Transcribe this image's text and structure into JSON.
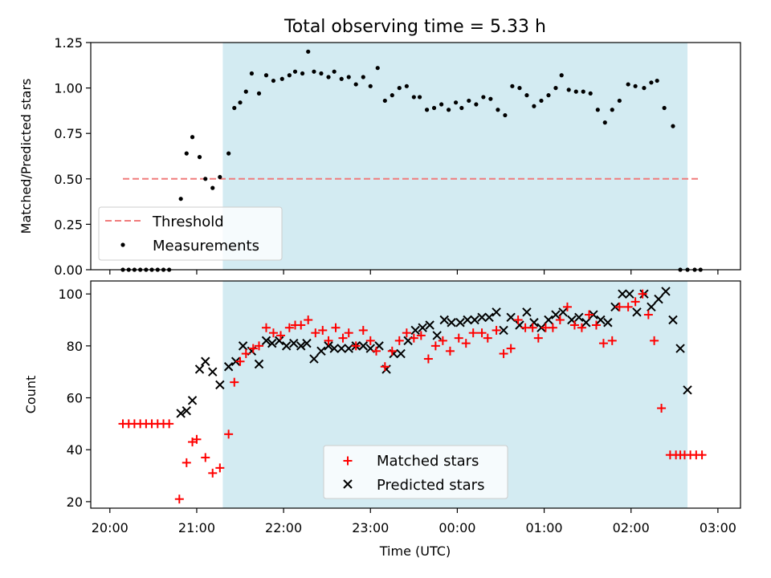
{
  "title": "Total observing time = 5.33 h",
  "xlabel": "Time (UTC)",
  "colors": {
    "shade": "#d3ebf2",
    "threshold": "#f07c7c",
    "matched": "#ff0000",
    "predicted": "#000000"
  },
  "chart_data": [
    {
      "type": "scatter",
      "panel": "top",
      "ylabel": "Matched/Predicted stars",
      "ylim": [
        0,
        1.25
      ],
      "yticks": [
        0.0,
        0.25,
        0.5,
        0.75,
        1.0,
        1.25
      ],
      "ytick_labels": [
        "0.00",
        "0.25",
        "0.50",
        "0.75",
        "1.00",
        "1.25"
      ],
      "x_range_hours": [
        19.78,
        27.26
      ],
      "xticks_hours": [
        20,
        21,
        22,
        23,
        24,
        25,
        26,
        27
      ],
      "shaded_interval_hours": [
        21.3,
        26.65
      ],
      "threshold": {
        "name": "Threshold",
        "value": 0.5,
        "x_start_hours": 20.15,
        "x_end_hours": 26.8
      },
      "legend_position": "lower-left",
      "series": [
        {
          "name": "Measurements",
          "x_hours": [
            20.15,
            20.217,
            20.283,
            20.35,
            20.417,
            20.483,
            20.55,
            20.617,
            20.683,
            20.817,
            20.883,
            20.95,
            21.033,
            21.1,
            21.183,
            21.267,
            21.367,
            21.433,
            21.5,
            21.567,
            21.633,
            21.717,
            21.8,
            21.883,
            21.983,
            22.067,
            22.133,
            22.217,
            22.283,
            22.35,
            22.433,
            22.517,
            22.583,
            22.667,
            22.75,
            22.833,
            22.917,
            23.0,
            23.083,
            23.167,
            23.25,
            23.333,
            23.417,
            23.5,
            23.567,
            23.65,
            23.733,
            23.817,
            23.9,
            23.983,
            24.05,
            24.133,
            24.217,
            24.3,
            24.383,
            24.467,
            24.55,
            24.633,
            24.717,
            24.8,
            24.883,
            24.967,
            25.05,
            25.133,
            25.2,
            25.283,
            25.367,
            25.45,
            25.533,
            25.617,
            25.7,
            25.783,
            25.867,
            25.967,
            26.05,
            26.15,
            26.233,
            26.3,
            26.383,
            26.483,
            26.567,
            26.65,
            26.733,
            26.8
          ],
          "y": [
            0.0,
            0.0,
            0.0,
            0.0,
            0.0,
            0.0,
            0.0,
            0.0,
            0.0,
            0.39,
            0.64,
            0.73,
            0.62,
            0.5,
            0.45,
            0.51,
            0.64,
            0.89,
            0.92,
            0.98,
            1.08,
            0.97,
            1.07,
            1.04,
            1.05,
            1.07,
            1.09,
            1.08,
            1.2,
            1.09,
            1.08,
            1.06,
            1.09,
            1.05,
            1.06,
            1.02,
            1.06,
            1.01,
            1.11,
            0.93,
            0.96,
            1.0,
            1.01,
            0.95,
            0.95,
            0.88,
            0.89,
            0.91,
            0.88,
            0.92,
            0.89,
            0.93,
            0.91,
            0.95,
            0.94,
            0.88,
            0.85,
            1.01,
            1.0,
            0.96,
            0.9,
            0.93,
            0.96,
            1.0,
            1.07,
            0.99,
            0.98,
            0.98,
            0.97,
            0.88,
            0.81,
            0.88,
            0.93,
            1.02,
            1.01,
            1.0,
            1.03,
            1.04,
            0.89,
            0.79,
            0.0,
            0.0,
            0.0,
            0.0
          ]
        }
      ]
    },
    {
      "type": "scatter",
      "panel": "bottom",
      "ylabel": "Count",
      "ylim": [
        17.5,
        105
      ],
      "yticks": [
        20,
        40,
        60,
        80,
        100
      ],
      "ytick_labels": [
        "20",
        "40",
        "60",
        "80",
        "100"
      ],
      "x_range_hours": [
        19.78,
        27.26
      ],
      "xticks_hours": [
        20,
        21,
        22,
        23,
        24,
        25,
        26,
        27
      ],
      "xtick_labels": [
        "20:00",
        "21:00",
        "22:00",
        "23:00",
        "00:00",
        "01:00",
        "02:00",
        "03:00"
      ],
      "shaded_interval_hours": [
        21.3,
        26.65
      ],
      "legend_position": "lower-center",
      "series": [
        {
          "name": "Matched stars",
          "marker": "plus",
          "x_hours": [
            20.15,
            20.217,
            20.283,
            20.35,
            20.417,
            20.483,
            20.55,
            20.617,
            20.683,
            20.8,
            20.883,
            20.95,
            21.0,
            21.1,
            21.183,
            21.267,
            21.367,
            21.433,
            21.5,
            21.567,
            21.65,
            21.717,
            21.8,
            21.883,
            21.967,
            22.067,
            22.133,
            22.2,
            22.283,
            22.367,
            22.45,
            22.517,
            22.6,
            22.683,
            22.75,
            22.833,
            22.917,
            23.0,
            23.067,
            23.167,
            23.25,
            23.333,
            23.417,
            23.5,
            23.583,
            23.667,
            23.75,
            23.833,
            23.917,
            24.017,
            24.1,
            24.183,
            24.283,
            24.35,
            24.45,
            24.533,
            24.617,
            24.7,
            24.783,
            24.867,
            24.933,
            25.017,
            25.1,
            25.183,
            25.267,
            25.35,
            25.433,
            25.517,
            25.6,
            25.683,
            25.783,
            25.867,
            25.967,
            26.05,
            26.133,
            26.2,
            26.267,
            26.35,
            26.45,
            26.517,
            26.567,
            26.617,
            26.683,
            26.75,
            26.817
          ],
          "y": [
            50,
            50,
            50,
            50,
            50,
            50,
            50,
            50,
            50,
            21,
            35,
            43,
            44,
            37,
            31,
            33,
            46,
            66,
            74,
            77,
            79,
            80,
            87,
            85,
            84,
            87,
            88,
            88,
            90,
            85,
            86,
            82,
            87,
            83,
            85,
            80,
            86,
            82,
            78,
            72,
            78,
            82,
            85,
            83,
            84,
            75,
            80,
            82,
            78,
            83,
            81,
            85,
            85,
            83,
            86,
            77,
            79,
            90,
            87,
            87,
            83,
            87,
            87,
            90,
            95,
            88,
            87,
            92,
            88,
            81,
            82,
            95,
            95,
            97,
            100,
            92,
            82,
            56,
            38,
            38,
            38,
            38,
            38,
            38,
            38
          ]
        },
        {
          "name": "Predicted stars",
          "marker": "x",
          "x_hours": [
            20.817,
            20.883,
            20.95,
            21.033,
            21.1,
            21.183,
            21.267,
            21.367,
            21.45,
            21.533,
            21.633,
            21.717,
            21.8,
            21.867,
            21.95,
            22.033,
            22.117,
            22.2,
            22.267,
            22.35,
            22.433,
            22.517,
            22.583,
            22.667,
            22.75,
            22.833,
            22.917,
            23.0,
            23.1,
            23.183,
            23.267,
            23.35,
            23.433,
            23.517,
            23.6,
            23.683,
            23.767,
            23.85,
            23.933,
            24.033,
            24.117,
            24.2,
            24.283,
            24.367,
            24.45,
            24.533,
            24.617,
            24.717,
            24.8,
            24.883,
            24.967,
            25.05,
            25.133,
            25.217,
            25.317,
            25.4,
            25.483,
            25.567,
            25.65,
            25.733,
            25.817,
            25.9,
            25.983,
            26.067,
            26.15,
            26.233,
            26.317,
            26.4,
            26.483,
            26.567,
            26.65
          ],
          "y": [
            54,
            55,
            59,
            71,
            74,
            70,
            65,
            72,
            74,
            80,
            78,
            73,
            82,
            81,
            82,
            80,
            81,
            80,
            81,
            75,
            78,
            80,
            79,
            79,
            79,
            80,
            80,
            79,
            80,
            71,
            77,
            77,
            82,
            86,
            87,
            88,
            84,
            90,
            89,
            89,
            90,
            90,
            91,
            91,
            93,
            86,
            91,
            88,
            93,
            89,
            87,
            90,
            92,
            93,
            90,
            91,
            89,
            92,
            90,
            89,
            95,
            100,
            100,
            93,
            100,
            95,
            98,
            101,
            90,
            79,
            63
          ]
        }
      ]
    }
  ],
  "legend_labels": {
    "threshold": "Threshold",
    "measurements": "Measurements",
    "matched": "Matched stars",
    "predicted": "Predicted stars"
  }
}
